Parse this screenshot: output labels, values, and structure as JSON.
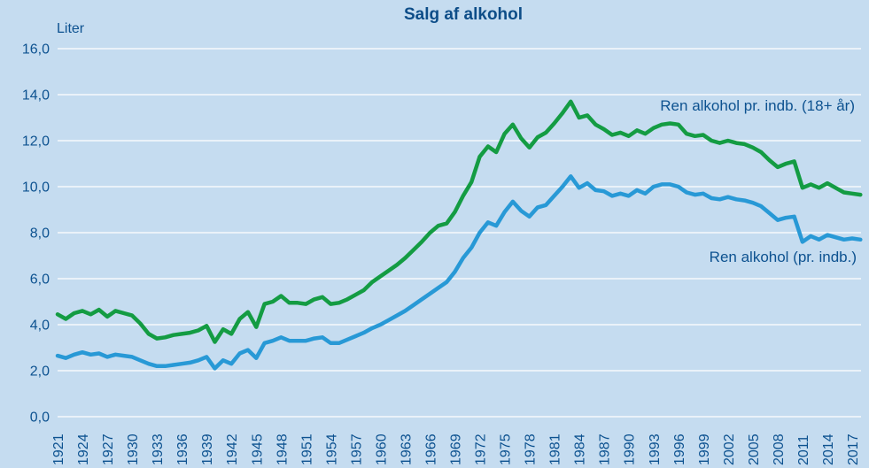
{
  "chart": {
    "background_color": "#c5dcf0",
    "text_color": "#0d5290",
    "title_color": "#0d4d88",
    "gridline_color": "#ffffff"
  },
  "chart_data": {
    "type": "line",
    "title": "Salg af alkohol",
    "ylabel": "Liter",
    "xlabel": "",
    "grid": true,
    "legend_position": "inline-right",
    "ylim": [
      0,
      16
    ],
    "ytick_step": 2,
    "ytick_labels": [
      "0,0",
      "2,0",
      "4,0",
      "6,0",
      "8,0",
      "10,0",
      "12,0",
      "14,0",
      "16,0"
    ],
    "x_start_year": 1921,
    "x_end_year": 2018,
    "x_tick_years": [
      1921,
      1924,
      1927,
      1930,
      1933,
      1936,
      1939,
      1942,
      1945,
      1948,
      1951,
      1954,
      1957,
      1960,
      1963,
      1966,
      1969,
      1972,
      1975,
      1978,
      1981,
      1984,
      1987,
      1990,
      1993,
      1996,
      1999,
      2002,
      2005,
      2008,
      2011,
      2014,
      2017
    ],
    "series": [
      {
        "name": "Ren alkohol pr. indb. (18+ år)",
        "color": "#149c43",
        "values": [
          4.45,
          4.25,
          4.5,
          4.6,
          4.45,
          4.65,
          4.35,
          4.6,
          4.5,
          4.4,
          4.05,
          3.6,
          3.4,
          3.45,
          3.55,
          3.6,
          3.65,
          3.75,
          3.95,
          3.25,
          3.8,
          3.6,
          4.25,
          4.55,
          3.9,
          4.9,
          5.0,
          5.25,
          4.95,
          4.95,
          4.9,
          5.1,
          5.2,
          4.9,
          4.95,
          5.1,
          5.3,
          5.5,
          5.85,
          6.1,
          6.35,
          6.6,
          6.9,
          7.25,
          7.6,
          8.0,
          8.3,
          8.4,
          8.9,
          9.6,
          10.2,
          11.3,
          11.75,
          11.5,
          12.3,
          12.7,
          12.1,
          11.7,
          12.15,
          12.35,
          12.75,
          13.2,
          13.7,
          13.0,
          13.1,
          12.7,
          12.5,
          12.25,
          12.35,
          12.2,
          12.45,
          12.3,
          12.55,
          12.7,
          12.75,
          12.7,
          12.3,
          12.2,
          12.25,
          12.0,
          11.9,
          12.0,
          11.9,
          11.85,
          11.7,
          11.5,
          11.15,
          10.85,
          11.0,
          11.1,
          9.95,
          10.1,
          9.95,
          10.15,
          9.95,
          9.75,
          9.7,
          9.65
        ]
      },
      {
        "name": "Ren alkohol (pr. indb.)",
        "color": "#2899d6",
        "values": [
          2.65,
          2.55,
          2.7,
          2.8,
          2.7,
          2.75,
          2.6,
          2.7,
          2.65,
          2.6,
          2.45,
          2.3,
          2.2,
          2.2,
          2.25,
          2.3,
          2.35,
          2.45,
          2.6,
          2.1,
          2.45,
          2.3,
          2.75,
          2.9,
          2.55,
          3.2,
          3.3,
          3.45,
          3.3,
          3.3,
          3.3,
          3.4,
          3.45,
          3.2,
          3.2,
          3.35,
          3.5,
          3.65,
          3.85,
          4.0,
          4.2,
          4.4,
          4.6,
          4.85,
          5.1,
          5.35,
          5.6,
          5.85,
          6.3,
          6.9,
          7.35,
          8.0,
          8.45,
          8.3,
          8.9,
          9.35,
          8.95,
          8.7,
          9.1,
          9.2,
          9.6,
          10.0,
          10.45,
          9.95,
          10.15,
          9.85,
          9.8,
          9.6,
          9.7,
          9.6,
          9.85,
          9.7,
          10.0,
          10.1,
          10.1,
          10.0,
          9.75,
          9.65,
          9.7,
          9.5,
          9.45,
          9.55,
          9.45,
          9.4,
          9.3,
          9.15,
          8.85,
          8.55,
          8.65,
          8.7,
          7.6,
          7.85,
          7.7,
          7.9,
          7.8,
          7.7,
          7.75,
          7.7
        ]
      }
    ]
  }
}
